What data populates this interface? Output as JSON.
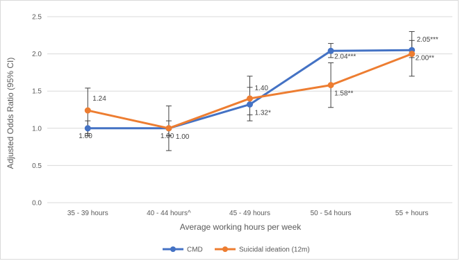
{
  "chart_data": {
    "type": "line",
    "categories": [
      "35 - 39 hours",
      "40 - 44 hours^",
      "45 - 49 hours",
      "50 - 54 hours",
      "55 + hours"
    ],
    "xlabel": "Average working hours per week",
    "ylabel": "Adjusted Odds Ratio (95% CI)",
    "ylim": [
      0,
      2.5
    ],
    "yticks": [
      "0.0",
      "0.5",
      "1.0",
      "1.5",
      "2.0",
      "2.5"
    ],
    "grid": true,
    "legend_position": "bottom",
    "series": [
      {
        "name": "CMD",
        "color": "#4472C4",
        "values": [
          1.0,
          1.0,
          1.32,
          2.04,
          2.05
        ],
        "ci_low": [
          0.93,
          0.9,
          1.1,
          1.95,
          1.95
        ],
        "ci_high": [
          1.1,
          1.1,
          1.55,
          2.14,
          2.18
        ],
        "labels": [
          "1.00",
          "1.00",
          "1.32*",
          "2.04***",
          "2.05***"
        ]
      },
      {
        "name": "Suicidal ideation (12m)",
        "color": "#ED7D31",
        "values": [
          1.24,
          1.0,
          1.4,
          1.58,
          2.0
        ],
        "ci_low": [
          0.9,
          0.7,
          1.18,
          1.28,
          1.7
        ],
        "ci_high": [
          1.54,
          1.3,
          1.7,
          1.88,
          2.3
        ],
        "labels": [
          "1.24",
          "1.00",
          "1.40",
          "1.58**",
          "2.00**"
        ]
      }
    ]
  }
}
